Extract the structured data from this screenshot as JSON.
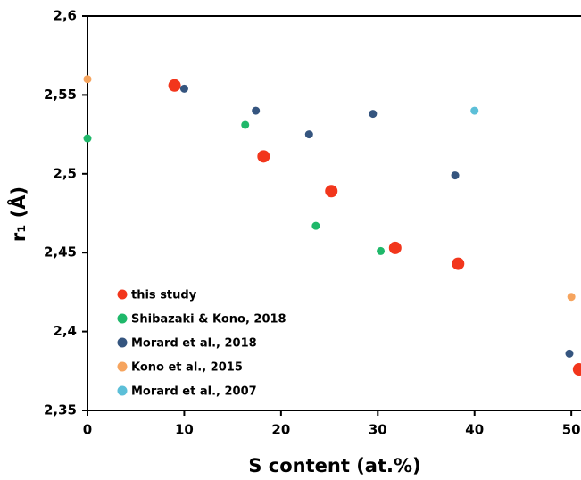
{
  "chart_data": {
    "type": "scatter",
    "x_label": "S content (at.%)",
    "y_label": "r₁ (Å)",
    "xlim": [
      0,
      51
    ],
    "ylim": [
      2.35,
      2.6
    ],
    "xticks": [
      0,
      10,
      20,
      30,
      40,
      50
    ],
    "yticks": [
      {
        "value": 2.35,
        "label": "2,35"
      },
      {
        "value": 2.4,
        "label": "2,4"
      },
      {
        "value": 2.45,
        "label": "2,45"
      },
      {
        "value": 2.5,
        "label": "2,5"
      },
      {
        "value": 2.55,
        "label": "2,55"
      },
      {
        "value": 2.6,
        "label": "2,6"
      }
    ],
    "legend_position": "lower left",
    "series": [
      {
        "name": "this study",
        "color": "#f2361c",
        "size": 7,
        "x": [
          9,
          18.2,
          25.2,
          31.8,
          38.3,
          50.8
        ],
        "values": [
          2.556,
          2.511,
          2.489,
          2.453,
          2.443,
          2.376
        ]
      },
      {
        "name": "Shibazaki & Kono, 2018",
        "color": "#1fb86a",
        "size": 4.5,
        "x": [
          0,
          16.3,
          23.6,
          30.3
        ],
        "values": [
          2.5225,
          2.531,
          2.467,
          2.451
        ]
      },
      {
        "name": "Morard et al., 2018",
        "color": "#35557f",
        "size": 4.5,
        "x": [
          10,
          17.4,
          22.9,
          29.5,
          38,
          49.8
        ],
        "values": [
          2.554,
          2.54,
          2.525,
          2.538,
          2.499,
          2.386
        ]
      },
      {
        "name": "Kono et al., 2015",
        "color": "#f6a45e",
        "size": 4.5,
        "x": [
          0,
          50
        ],
        "values": [
          2.56,
          2.422
        ]
      },
      {
        "name": "Morard et al., 2007",
        "color": "#5cbfd8",
        "size": 4.5,
        "x": [
          40
        ],
        "values": [
          2.54
        ]
      }
    ]
  }
}
